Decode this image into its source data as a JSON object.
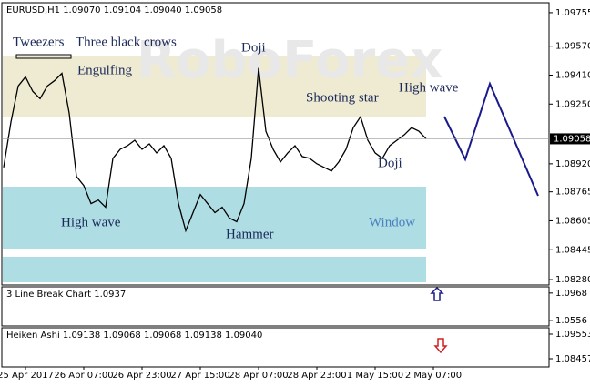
{
  "chart_data": [
    {
      "type": "line",
      "title": "EURUSD,H1  1.09070 1.09104 1.09040 1.09058",
      "watermark": "RoboForex",
      "color": "#000000",
      "categories": [
        null,
        null,
        null,
        "25 Apr 2017",
        null,
        null,
        null,
        null,
        null,
        null,
        null,
        "26 Apr 07:00",
        null,
        null,
        null,
        null,
        null,
        null,
        null,
        "26 Apr 23:00",
        null,
        null,
        null,
        null,
        null,
        null,
        null,
        "27 Apr 15:00",
        null,
        null,
        null,
        null,
        null,
        null,
        null,
        "28 Apr 07:00",
        null,
        null,
        null,
        null,
        null,
        null,
        null,
        "28 Apr 23:00",
        null,
        null,
        null,
        null,
        null,
        null,
        null,
        "1 May 15:00",
        null,
        null,
        null,
        null,
        null,
        null,
        null,
        "2 May 07:00"
      ],
      "values": [
        1.089,
        1.0915,
        1.0935,
        1.094,
        1.0932,
        1.0928,
        1.0935,
        1.0938,
        1.0942,
        1.092,
        1.0885,
        1.088,
        1.087,
        1.0872,
        1.0868,
        1.0895,
        1.09,
        1.0902,
        1.0905,
        1.09,
        1.0903,
        1.0898,
        1.0902,
        1.0895,
        1.087,
        1.0855,
        1.0865,
        1.0875,
        1.087,
        1.0865,
        1.0868,
        1.0862,
        1.086,
        1.087,
        1.0895,
        1.0945,
        1.091,
        1.09,
        1.0893,
        1.0898,
        1.0902,
        1.0896,
        1.0895,
        1.0892,
        1.089,
        1.0888,
        1.0893,
        1.09,
        1.0912,
        1.0918,
        1.0905,
        1.0898,
        1.0895,
        1.0902,
        1.0905,
        1.0908,
        1.0912,
        1.091,
        1.09058,
        null
      ],
      "ylim": [
        1.0825,
        1.0981
      ],
      "yticks": [
        1.09755,
        {
          "value": 1.0957,
          "label": "1.09570"
        },
        {
          "value": 1.0941,
          "label": "1.09410"
        },
        {
          "value": 1.0925,
          "label": "1.09250"
        },
        {
          "value": 1.0892,
          "label": "1.08920"
        },
        1.08765,
        1.08605,
        1.08445,
        {
          "value": 1.0828,
          "label": "1.08280"
        }
      ],
      "current_price": {
        "value": 1.09058,
        "label": "1.09058"
      },
      "annotations": [
        "Tweezers",
        "Three black crows",
        "Engulfing",
        "Doji",
        "Shooting star",
        "High wave",
        "Doji",
        "High wave",
        "Hammer",
        "Window"
      ]
    },
    {
      "type": "indicator",
      "title": "3 Line Break Chart 1.0937",
      "ylim": [
        1.0476,
        1.1061
      ],
      "yticks": [
        1.0968,
        1.0556
      ]
    },
    {
      "type": "indicator",
      "title": "Heiken Ashi 1.09138 1.09068 1.09068 1.09138 1.09040",
      "ylim": [
        1.08092,
        1.09837
      ],
      "yticks": [
        1.09553,
        1.08457
      ]
    }
  ]
}
